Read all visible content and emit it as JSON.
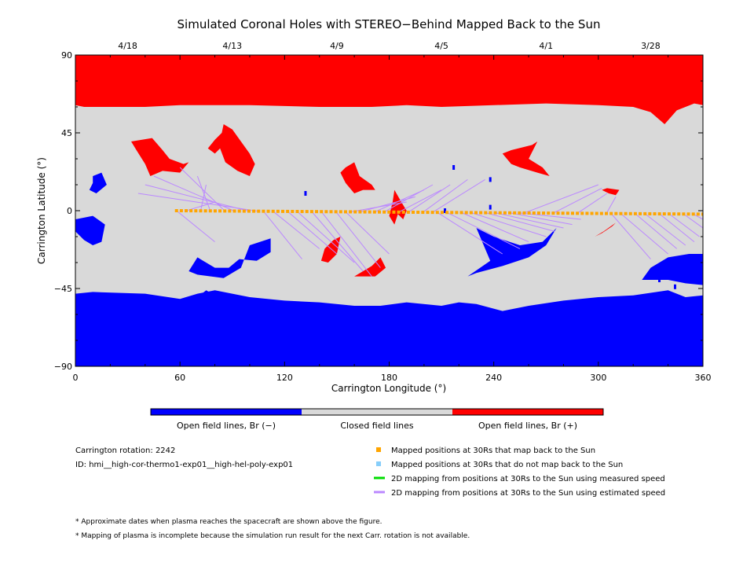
{
  "chart_data": {
    "type": "map",
    "title": "Simulated Coronal Holes with STEREO−Behind Mapped Back to the Sun",
    "xlabel": "Carrington Longitude (°)",
    "ylabel": "Carrington Latitude (°)",
    "xlim": [
      0,
      360
    ],
    "ylim": [
      -90,
      90
    ],
    "xticks": [
      "0",
      "60",
      "120",
      "180",
      "240",
      "300",
      "360"
    ],
    "yticks": [
      "90",
      "45",
      "0",
      "−45",
      "−90"
    ],
    "top_dates": [
      {
        "label": "4/18",
        "lon": 30
      },
      {
        "label": "4/13",
        "lon": 90
      },
      {
        "label": "4/9",
        "lon": 150
      },
      {
        "label": "4/5",
        "lon": 210
      },
      {
        "label": "4/1",
        "lon": 270
      },
      {
        "label": "3/28",
        "lon": 330
      }
    ],
    "colorbar": {
      "colors": [
        "#0000ff",
        "#d9d9d9",
        "#ff0000"
      ],
      "labels": [
        "Open field lines, Br (−)",
        "Closed field lines",
        "Open field lines, Br (+)"
      ]
    },
    "colors": {
      "negative": "#0000ff",
      "closed": "#d9d9d9",
      "positive": "#ff0000",
      "mapped": "#ffa500",
      "not_mapped": "#87cefa",
      "measured": "#00dd00",
      "estimated": "#bb88ff"
    },
    "regions": {
      "north_cap": [
        [
          0,
          61
        ],
        [
          5,
          60
        ],
        [
          40,
          60
        ],
        [
          60,
          61
        ],
        [
          100,
          61
        ],
        [
          140,
          60
        ],
        [
          170,
          60
        ],
        [
          190,
          61
        ],
        [
          210,
          60
        ],
        [
          240,
          61
        ],
        [
          270,
          62
        ],
        [
          300,
          61
        ],
        [
          320,
          60
        ],
        [
          330,
          57
        ],
        [
          338,
          50
        ],
        [
          345,
          58
        ],
        [
          355,
          62
        ],
        [
          360,
          61
        ]
      ],
      "south_cap": [
        [
          0,
          -48
        ],
        [
          10,
          -47
        ],
        [
          40,
          -48
        ],
        [
          60,
          -51
        ],
        [
          70,
          -48
        ],
        [
          80,
          -46
        ],
        [
          100,
          -50
        ],
        [
          120,
          -52
        ],
        [
          140,
          -53
        ],
        [
          160,
          -55
        ],
        [
          175,
          -55
        ],
        [
          190,
          -53
        ],
        [
          210,
          -55
        ],
        [
          220,
          -53
        ],
        [
          230,
          -54
        ],
        [
          245,
          -58
        ],
        [
          260,
          -55
        ],
        [
          280,
          -52
        ],
        [
          300,
          -50
        ],
        [
          320,
          -49
        ],
        [
          340,
          -46
        ],
        [
          350,
          -50
        ],
        [
          360,
          -49
        ]
      ],
      "positive": [
        [
          [
            32,
            40
          ],
          [
            44,
            42
          ],
          [
            50,
            35
          ],
          [
            54,
            30
          ],
          [
            62,
            27
          ],
          [
            65,
            28
          ],
          [
            60,
            22
          ],
          [
            50,
            23
          ],
          [
            43,
            20
          ],
          [
            40,
            27
          ],
          [
            35,
            35
          ]
        ],
        [
          [
            85,
            50
          ],
          [
            90,
            47
          ],
          [
            95,
            40
          ],
          [
            100,
            33
          ],
          [
            103,
            27
          ],
          [
            100,
            20
          ],
          [
            93,
            23
          ],
          [
            86,
            28
          ],
          [
            83,
            36
          ],
          [
            80,
            33
          ],
          [
            76,
            36
          ],
          [
            80,
            41
          ],
          [
            84,
            45
          ]
        ],
        [
          [
            155,
            25
          ],
          [
            160,
            28
          ],
          [
            163,
            20
          ],
          [
            170,
            15
          ],
          [
            172,
            12
          ],
          [
            165,
            12
          ],
          [
            160,
            10
          ],
          [
            155,
            16
          ],
          [
            152,
            22
          ]
        ],
        [
          [
            183,
            12
          ],
          [
            187,
            5
          ],
          [
            190,
            0
          ],
          [
            188,
            -5
          ],
          [
            185,
            -2
          ],
          [
            183,
            -8
          ],
          [
            180,
            -3
          ],
          [
            182,
            5
          ]
        ],
        [
          [
            152,
            -15
          ],
          [
            150,
            -25
          ],
          [
            145,
            -30
          ],
          [
            141,
            -29
          ],
          [
            143,
            -22
          ],
          [
            148,
            -17
          ]
        ],
        [
          [
            175,
            -27
          ],
          [
            170,
            -32
          ],
          [
            165,
            -35
          ],
          [
            160,
            -38
          ],
          [
            172,
            -38
          ],
          [
            178,
            -33
          ]
        ],
        [
          [
            250,
            35
          ],
          [
            262,
            38
          ],
          [
            265,
            40
          ],
          [
            260,
            30
          ],
          [
            268,
            25
          ],
          [
            272,
            20
          ],
          [
            265,
            22
          ],
          [
            255,
            25
          ],
          [
            250,
            27
          ],
          [
            245,
            33
          ]
        ],
        [
          [
            305,
            13
          ],
          [
            312,
            12
          ],
          [
            310,
            9
          ],
          [
            306,
            10
          ],
          [
            302,
            12
          ]
        ],
        [
          [
            310,
            -7
          ],
          [
            303,
            -12
          ],
          [
            298,
            -15
          ],
          [
            302,
            -13
          ],
          [
            308,
            -9
          ]
        ]
      ],
      "negative": [
        [
          [
            10,
            20
          ],
          [
            15,
            22
          ],
          [
            18,
            15
          ],
          [
            12,
            10
          ],
          [
            8,
            12
          ],
          [
            10,
            16
          ]
        ],
        [
          [
            0,
            -5
          ],
          [
            10,
            -3
          ],
          [
            17,
            -8
          ],
          [
            15,
            -18
          ],
          [
            10,
            -20
          ],
          [
            5,
            -17
          ],
          [
            0,
            -12
          ]
        ],
        [
          [
            100,
            -20
          ],
          [
            112,
            -16
          ],
          [
            112,
            -24
          ],
          [
            104,
            -29
          ],
          [
            94,
            -28
          ],
          [
            88,
            -33
          ],
          [
            80,
            -33
          ],
          [
            70,
            -27
          ],
          [
            65,
            -35
          ],
          [
            70,
            -37
          ],
          [
            85,
            -39
          ],
          [
            95,
            -33
          ]
        ],
        [
          [
            230,
            -10
          ],
          [
            240,
            -15
          ],
          [
            255,
            -20
          ],
          [
            268,
            -18
          ],
          [
            276,
            -10
          ],
          [
            270,
            -20
          ],
          [
            260,
            -27
          ],
          [
            245,
            -32
          ],
          [
            230,
            -36
          ],
          [
            215,
            -42
          ],
          [
            225,
            -38
          ],
          [
            238,
            -29
          ]
        ],
        [
          [
            340,
            -27
          ],
          [
            352,
            -25
          ],
          [
            360,
            -25
          ],
          [
            360,
            -43
          ],
          [
            350,
            -42
          ],
          [
            340,
            -40
          ],
          [
            325,
            -40
          ],
          [
            330,
            -33
          ]
        ],
        [
          [
            75,
            -46
          ],
          [
            85,
            -52
          ],
          [
            70,
            -50
          ]
        ]
      ],
      "negative_dots": [
        [
          132,
          10
        ],
        [
          217,
          25
        ],
        [
          238,
          18
        ],
        [
          238,
          2
        ],
        [
          212,
          0
        ],
        [
          335,
          -40
        ],
        [
          344,
          -44
        ]
      ]
    },
    "mapped_track": {
      "lon_start": 58,
      "lon_end": 360,
      "lat_start": 0,
      "lat_end": -2,
      "count": 110
    },
    "mapping_targets_estimated": [
      [
        [
          80,
          -18
        ],
        [
          80,
          5
        ],
        [
          75,
          15
        ],
        [
          70,
          20
        ],
        [
          60,
          25
        ],
        [
          45,
          20
        ],
        [
          40,
          15
        ],
        [
          36,
          10
        ]
      ],
      [
        [
          130,
          -28
        ],
        [
          140,
          -22
        ],
        [
          150,
          -25
        ],
        [
          160,
          -30
        ],
        [
          165,
          -35
        ],
        [
          170,
          -38
        ],
        [
          175,
          -33
        ],
        [
          180,
          -25
        ]
      ],
      [
        [
          190,
          5
        ],
        [
          195,
          8
        ],
        [
          200,
          12
        ],
        [
          205,
          15
        ],
        [
          210,
          12
        ],
        [
          215,
          15
        ],
        [
          225,
          18
        ],
        [
          235,
          18
        ]
      ],
      [
        [
          245,
          -25
        ],
        [
          255,
          -22
        ],
        [
          260,
          -18
        ],
        [
          270,
          -15
        ],
        [
          275,
          -12
        ],
        [
          280,
          -10
        ],
        [
          285,
          -8
        ],
        [
          290,
          -5
        ]
      ],
      [
        [
          300,
          15
        ],
        [
          302,
          13
        ],
        [
          305,
          10
        ],
        [
          310,
          8
        ]
      ],
      [
        [
          330,
          -28
        ],
        [
          340,
          -25
        ],
        [
          345,
          -22
        ],
        [
          350,
          -20
        ],
        [
          355,
          -18
        ],
        [
          358,
          -15
        ],
        [
          360,
          -10
        ],
        [
          360,
          -5
        ]
      ]
    ]
  },
  "legend": {
    "rotation_label": "Carrington rotation: 2242",
    "id_label": "ID: hmi__high-cor-thermo1-exp01__high-hel-poly-exp01",
    "items": [
      "Mapped positions at 30Rs that map back to the Sun",
      "Mapped positions at 30Rs that do not map back to the Sun",
      "2D mapping from positions at 30Rs to the Sun using measured speed",
      "2D mapping from positions at 30Rs to the Sun using estimated speed"
    ]
  },
  "footnotes": [
    "* Approximate dates when plasma reaches the spacecraft are shown above the figure.",
    "* Mapping of plasma is incomplete because the simulation run result for the next Carr. rotation is not available."
  ]
}
